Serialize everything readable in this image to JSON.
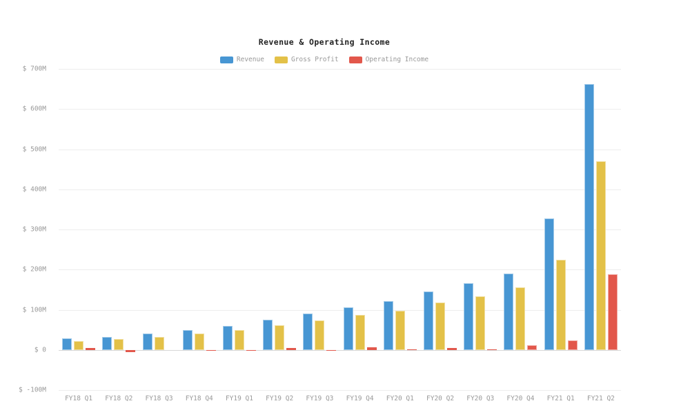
{
  "chart": {
    "title": "Revenue & Operating Income"
  },
  "chart_data": {
    "type": "bar",
    "title": "Revenue & Operating Income",
    "categories": [
      "FY18 Q1",
      "FY18 Q2",
      "FY18 Q3",
      "FY18 Q4",
      "FY19 Q1",
      "FY19 Q2",
      "FY19 Q3",
      "FY19 Q4",
      "FY20 Q1",
      "FY20 Q2",
      "FY20 Q3",
      "FY20 Q4",
      "FY21 Q1",
      "FY21 Q2"
    ],
    "series": [
      {
        "name": "Revenue",
        "color": "#4796D3",
        "values": [
          28,
          33,
          41,
          50,
          60,
          75,
          91,
          106,
          122,
          146,
          166,
          190,
          328,
          663
        ]
      },
      {
        "name": "Gross Profit",
        "color": "#E3C148",
        "values": [
          22,
          27,
          33,
          41,
          49,
          61,
          74,
          87,
          98,
          118,
          134,
          156,
          225,
          470
        ]
      },
      {
        "name": "Operating Income",
        "color": "#E2574B",
        "values": [
          4,
          -6,
          0,
          -1,
          -2,
          4,
          -1,
          6,
          2,
          4,
          1,
          11,
          23,
          188
        ]
      }
    ],
    "yticks": [
      {
        "value": 700,
        "label": "$ 700M"
      },
      {
        "value": 600,
        "label": "$ 600M"
      },
      {
        "value": 500,
        "label": "$ 500M"
      },
      {
        "value": 400,
        "label": "$ 400M"
      },
      {
        "value": 300,
        "label": "$ 300M"
      },
      {
        "value": 200,
        "label": "$ 200M"
      },
      {
        "value": 100,
        "label": "$ 100M"
      },
      {
        "value": 0,
        "label": "$ 0"
      },
      {
        "value": -100,
        "label": "$ -100M"
      }
    ],
    "ylim": [
      -100,
      700
    ],
    "xlabel": "",
    "ylabel": "",
    "grid": true,
    "legend_position": "top"
  },
  "colors": {
    "background": "#ffffff",
    "grid": "#ededed",
    "zero_line": "#d6d6d6",
    "tick_text": "#999999",
    "title_text": "#222222"
  }
}
